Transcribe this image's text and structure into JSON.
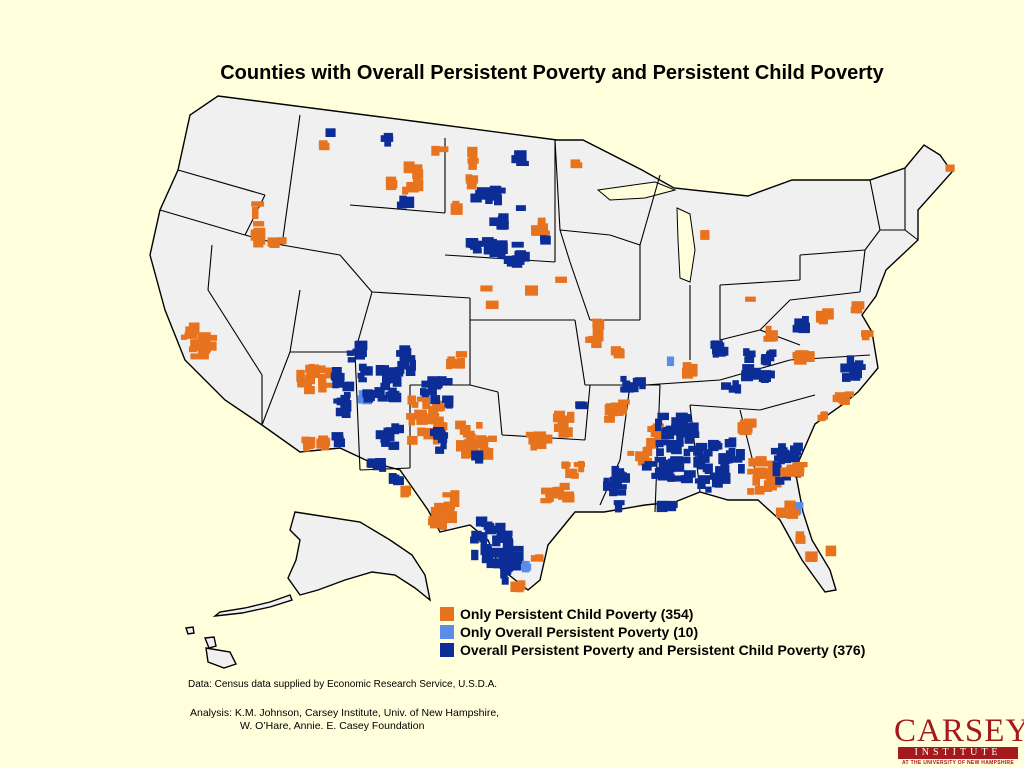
{
  "title": "Counties with Overall Persistent Poverty and Persistent Child Poverty",
  "colors": {
    "background": "#ffffdc",
    "land": "#f0f0f0",
    "border": "#000000",
    "only_child": "#e8731e",
    "only_overall": "#5a8de8",
    "both": "#0c2d96"
  },
  "legend": [
    {
      "label": "Only Persistent Child Poverty  (354)",
      "color": "#e8731e"
    },
    {
      "label": "Only Overall Persistent Poverty  (10)",
      "color": "#5a8de8"
    },
    {
      "label": "Overall Persistent Poverty and Persistent Child Poverty  (376)",
      "color": "#0c2d96"
    }
  ],
  "source": "Data: Census data supplied by Economic Research Service, U.S.D.A.",
  "analysis": {
    "line1": "Analysis: K.M. Johnson, Carsey Institute, Univ. of New Hampshire,",
    "line2": "W. O’Hare, Annie. E. Casey Foundation"
  },
  "logo": {
    "main": "CARSEY",
    "bar": "INSTITUTE",
    "sub": "AT THE UNIVERSITY OF NEW HAMPSHIRE"
  }
}
